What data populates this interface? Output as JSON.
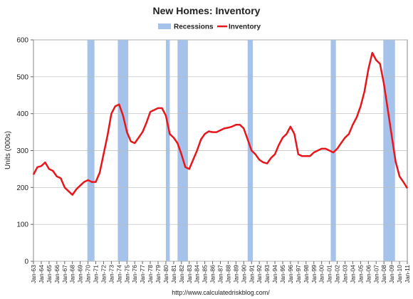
{
  "chart_data": {
    "type": "line",
    "title": "New Homes: Inventory",
    "ylabel": "Units (000s)",
    "source": "http://www.calculatedriskblog.com/",
    "xlim": [
      1963,
      2011
    ],
    "ylim": [
      0,
      600
    ],
    "yticks": [
      0,
      100,
      200,
      300,
      400,
      500,
      600
    ],
    "grid": true,
    "xticks": [
      {
        "value": 1963,
        "label": "Jan-63"
      },
      {
        "value": 1964,
        "label": "Jan-64"
      },
      {
        "value": 1965,
        "label": "Jan-65"
      },
      {
        "value": 1966,
        "label": "Jan-66"
      },
      {
        "value": 1967,
        "label": "Jan-67"
      },
      {
        "value": 1968,
        "label": "Jan-68"
      },
      {
        "value": 1969,
        "label": "Jan-69"
      },
      {
        "value": 1970,
        "label": "Jan-70"
      },
      {
        "value": 1971,
        "label": "Jan-71"
      },
      {
        "value": 1972,
        "label": "Jan-72"
      },
      {
        "value": 1973,
        "label": "Jan-73"
      },
      {
        "value": 1974,
        "label": "Jan-74"
      },
      {
        "value": 1975,
        "label": "Jan-75"
      },
      {
        "value": 1976,
        "label": "Jan-76"
      },
      {
        "value": 1977,
        "label": "Jan-77"
      },
      {
        "value": 1978,
        "label": "Jan-78"
      },
      {
        "value": 1979,
        "label": "Jan-79"
      },
      {
        "value": 1980,
        "label": "Jan-80"
      },
      {
        "value": 1981,
        "label": "Jan-81"
      },
      {
        "value": 1982,
        "label": "Jan-82"
      },
      {
        "value": 1983,
        "label": "Jan-83"
      },
      {
        "value": 1984,
        "label": "Jan-84"
      },
      {
        "value": 1985,
        "label": "Jan-85"
      },
      {
        "value": 1986,
        "label": "Jan-86"
      },
      {
        "value": 1987,
        "label": "Jan-87"
      },
      {
        "value": 1988,
        "label": "Jan-88"
      },
      {
        "value": 1989,
        "label": "Jan-89"
      },
      {
        "value": 1990,
        "label": "Jan-90"
      },
      {
        "value": 1991,
        "label": "Jan-91"
      },
      {
        "value": 1992,
        "label": "Jan-92"
      },
      {
        "value": 1993,
        "label": "Jan-93"
      },
      {
        "value": 1994,
        "label": "Jan-94"
      },
      {
        "value": 1995,
        "label": "Jan-95"
      },
      {
        "value": 1996,
        "label": "Jan-96"
      },
      {
        "value": 1997,
        "label": "Jan-97"
      },
      {
        "value": 1998,
        "label": "Jan-98"
      },
      {
        "value": 1999,
        "label": "Jan-99"
      },
      {
        "value": 2000,
        "label": "Jan-00"
      },
      {
        "value": 2001,
        "label": "Jan-01"
      },
      {
        "value": 2002,
        "label": "Jan-02"
      },
      {
        "value": 2003,
        "label": "Jan-03"
      },
      {
        "value": 2004,
        "label": "Jan-04"
      },
      {
        "value": 2005,
        "label": "Jan-05"
      },
      {
        "value": 2006,
        "label": "Jan-06"
      },
      {
        "value": 2007,
        "label": "Jan-07"
      },
      {
        "value": 2008,
        "label": "Jan-08"
      },
      {
        "value": 2009,
        "label": "Jan-09"
      },
      {
        "value": 2010,
        "label": "Jan-10"
      },
      {
        "value": 2011,
        "label": "Jan-11"
      }
    ],
    "recessions": {
      "name": "Recessions",
      "color": "#a4c2ea",
      "bands": [
        [
          1969.92,
          1970.83
        ],
        [
          1973.83,
          1975.17
        ],
        [
          1980.0,
          1980.5
        ],
        [
          1981.5,
          1982.83
        ],
        [
          1990.5,
          1991.17
        ],
        [
          2001.17,
          2001.83
        ],
        [
          2007.92,
          2009.42
        ]
      ]
    },
    "x": [
      1963,
      1963.5,
      1964,
      1964.5,
      1965,
      1965.5,
      1966,
      1966.5,
      1967,
      1967.5,
      1968,
      1968.5,
      1969,
      1969.5,
      1970,
      1970.5,
      1971,
      1971.5,
      1972,
      1972.5,
      1973,
      1973.5,
      1974,
      1974.5,
      1975,
      1975.5,
      1976,
      1976.5,
      1977,
      1977.5,
      1978,
      1978.5,
      1979,
      1979.5,
      1980,
      1980.5,
      1981,
      1981.5,
      1982,
      1982.5,
      1983,
      1983.5,
      1984,
      1984.5,
      1985,
      1985.5,
      1986,
      1986.5,
      1987,
      1987.5,
      1988,
      1988.5,
      1989,
      1989.5,
      1990,
      1990.5,
      1991,
      1991.5,
      1992,
      1992.5,
      1993,
      1993.5,
      1994,
      1994.5,
      1995,
      1995.5,
      1996,
      1996.5,
      1997,
      1997.5,
      1998,
      1998.5,
      1999,
      1999.5,
      2000,
      2000.5,
      2001,
      2001.5,
      2002,
      2002.5,
      2003,
      2003.5,
      2004,
      2004.5,
      2005,
      2005.5,
      2006,
      2006.5,
      2007,
      2007.5,
      2008,
      2008.5,
      2009,
      2009.5,
      2010,
      2010.5,
      2011
    ],
    "series": [
      {
        "name": "Inventory",
        "color": "#e8161b",
        "values": [
          235,
          255,
          258,
          268,
          250,
          245,
          230,
          225,
          200,
          190,
          180,
          195,
          205,
          215,
          220,
          215,
          215,
          240,
          290,
          340,
          400,
          420,
          425,
          395,
          350,
          325,
          320,
          335,
          350,
          375,
          405,
          410,
          415,
          415,
          395,
          345,
          335,
          320,
          290,
          255,
          250,
          275,
          300,
          330,
          345,
          352,
          350,
          350,
          355,
          360,
          362,
          365,
          370,
          370,
          360,
          330,
          300,
          290,
          275,
          268,
          265,
          280,
          290,
          315,
          335,
          345,
          365,
          345,
          290,
          285,
          285,
          285,
          295,
          300,
          305,
          305,
          300,
          295,
          305,
          320,
          335,
          345,
          370,
          390,
          420,
          460,
          520,
          565,
          545,
          535,
          480,
          410,
          340,
          270,
          230,
          215,
          198
        ]
      }
    ]
  }
}
